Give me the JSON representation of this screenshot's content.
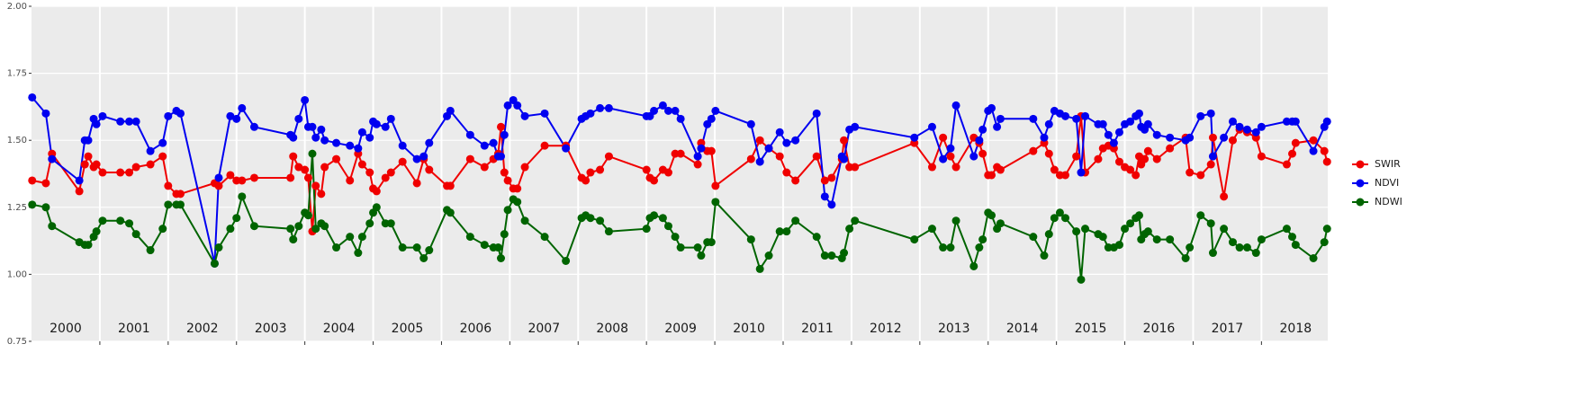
{
  "chart_data": {
    "type": "line",
    "x": [
      2000.01,
      2000.21,
      2000.3,
      2000.7,
      2000.78,
      2000.83,
      2000.91,
      2000.95,
      2001.04,
      2001.3,
      2001.43,
      2001.53,
      2001.74,
      2001.92,
      2002.0,
      2002.12,
      2002.18,
      2002.68,
      2002.74,
      2002.91,
      2003.0,
      2003.08,
      2003.26,
      2003.79,
      2003.83,
      2003.91,
      2004.0,
      2004.05,
      2004.11,
      2004.16,
      2004.24,
      2004.29,
      2004.46,
      2004.66,
      2004.78,
      2004.84,
      2004.95,
      2005.0,
      2005.05,
      2005.18,
      2005.26,
      2005.43,
      2005.64,
      2005.74,
      2005.82,
      2006.08,
      2006.13,
      2006.42,
      2006.63,
      2006.76,
      2006.83,
      2006.87,
      2006.92,
      2006.97,
      2007.05,
      2007.11,
      2007.22,
      2007.51,
      2007.82,
      2008.05,
      2008.11,
      2008.18,
      2008.32,
      2008.45,
      2009.0,
      2009.05,
      2009.11,
      2009.24,
      2009.32,
      2009.42,
      2009.5,
      2009.75,
      2009.8,
      2009.89,
      2009.95,
      2010.01,
      2010.53,
      2010.66,
      2010.79,
      2010.95,
      2011.05,
      2011.18,
      2011.49,
      2011.61,
      2011.71,
      2011.86,
      2011.89,
      2011.97,
      2012.05,
      2012.92,
      2013.18,
      2013.34,
      2013.45,
      2013.53,
      2013.79,
      2013.87,
      2013.92,
      2014.0,
      2014.05,
      2014.13,
      2014.18,
      2014.66,
      2014.82,
      2014.89,
      2014.97,
      2015.05,
      2015.13,
      2015.29,
      2015.36,
      2015.42,
      2015.61,
      2015.68,
      2015.76,
      2015.84,
      2015.92,
      2016.0,
      2016.08,
      2016.16,
      2016.21,
      2016.24,
      2016.29,
      2016.34,
      2016.47,
      2016.66,
      2016.89,
      2016.95,
      2017.11,
      2017.26,
      2017.29,
      2017.45,
      2017.58,
      2017.68,
      2017.79,
      2017.92,
      2018.0,
      2018.37,
      2018.45,
      2018.5,
      2018.76,
      2018.92,
      2018.96
    ],
    "series": [
      {
        "name": "SWIR",
        "color": "#f00000",
        "values": [
          1.35,
          1.34,
          1.45,
          1.31,
          1.41,
          1.44,
          1.4,
          1.41,
          1.38,
          1.38,
          1.38,
          1.4,
          1.41,
          1.44,
          1.33,
          1.3,
          1.3,
          1.34,
          1.33,
          1.37,
          1.35,
          1.35,
          1.36,
          1.36,
          1.44,
          1.4,
          1.39,
          1.36,
          1.16,
          1.33,
          1.3,
          1.4,
          1.43,
          1.35,
          1.45,
          1.41,
          1.38,
          1.32,
          1.31,
          1.36,
          1.38,
          1.42,
          1.34,
          1.43,
          1.39,
          1.33,
          1.33,
          1.43,
          1.4,
          1.43,
          1.45,
          1.55,
          1.38,
          1.35,
          1.32,
          1.32,
          1.4,
          1.48,
          1.48,
          1.36,
          1.35,
          1.38,
          1.39,
          1.44,
          1.39,
          1.36,
          1.35,
          1.39,
          1.38,
          1.45,
          1.45,
          1.41,
          1.49,
          1.46,
          1.46,
          1.33,
          1.43,
          1.5,
          1.47,
          1.44,
          1.38,
          1.35,
          1.44,
          1.35,
          1.36,
          1.43,
          1.5,
          1.4,
          1.4,
          1.49,
          1.4,
          1.51,
          1.44,
          1.4,
          1.51,
          1.49,
          1.45,
          1.37,
          1.37,
          1.4,
          1.39,
          1.46,
          1.49,
          1.45,
          1.39,
          1.37,
          1.37,
          1.44,
          1.59,
          1.38,
          1.43,
          1.47,
          1.48,
          1.47,
          1.42,
          1.4,
          1.39,
          1.37,
          1.44,
          1.41,
          1.43,
          1.46,
          1.43,
          1.47,
          1.51,
          1.38,
          1.37,
          1.41,
          1.51,
          1.29,
          1.5,
          1.54,
          1.53,
          1.51,
          1.44,
          1.41,
          1.45,
          1.49,
          1.5,
          1.46,
          1.42
        ]
      },
      {
        "name": "NDVI",
        "color": "#0000f0",
        "values": [
          1.66,
          1.6,
          1.43,
          1.35,
          1.5,
          1.5,
          1.58,
          1.56,
          1.59,
          1.57,
          1.57,
          1.57,
          1.46,
          1.49,
          1.59,
          1.61,
          1.6,
          1.04,
          1.36,
          1.59,
          1.58,
          1.62,
          1.55,
          1.52,
          1.51,
          1.58,
          1.65,
          1.55,
          1.55,
          1.51,
          1.54,
          1.5,
          1.49,
          1.48,
          1.47,
          1.53,
          1.51,
          1.57,
          1.56,
          1.55,
          1.58,
          1.48,
          1.43,
          1.44,
          1.49,
          1.59,
          1.61,
          1.52,
          1.48,
          1.49,
          1.44,
          1.44,
          1.52,
          1.63,
          1.65,
          1.63,
          1.59,
          1.6,
          1.47,
          1.58,
          1.59,
          1.6,
          1.62,
          1.62,
          1.59,
          1.59,
          1.61,
          1.63,
          1.61,
          1.61,
          1.58,
          1.44,
          1.47,
          1.56,
          1.58,
          1.61,
          1.56,
          1.42,
          1.47,
          1.53,
          1.49,
          1.5,
          1.6,
          1.29,
          1.26,
          1.44,
          1.43,
          1.54,
          1.55,
          1.51,
          1.55,
          1.43,
          1.47,
          1.63,
          1.44,
          1.5,
          1.54,
          1.61,
          1.62,
          1.55,
          1.58,
          1.58,
          1.51,
          1.56,
          1.61,
          1.6,
          1.59,
          1.58,
          1.38,
          1.59,
          1.56,
          1.56,
          1.52,
          1.49,
          1.53,
          1.56,
          1.57,
          1.59,
          1.6,
          1.55,
          1.54,
          1.56,
          1.52,
          1.51,
          1.5,
          1.51,
          1.59,
          1.6,
          1.44,
          1.51,
          1.57,
          1.55,
          1.54,
          1.53,
          1.55,
          1.57,
          1.57,
          1.57,
          1.46,
          1.55,
          1.57
        ]
      },
      {
        "name": "NDWI",
        "color": "#006400",
        "values": [
          1.26,
          1.25,
          1.18,
          1.12,
          1.11,
          1.11,
          1.14,
          1.16,
          1.2,
          1.2,
          1.19,
          1.15,
          1.09,
          1.17,
          1.26,
          1.26,
          1.26,
          1.04,
          1.1,
          1.17,
          1.21,
          1.29,
          1.18,
          1.17,
          1.13,
          1.18,
          1.23,
          1.22,
          1.45,
          1.17,
          1.19,
          1.18,
          1.1,
          1.14,
          1.08,
          1.14,
          1.19,
          1.23,
          1.25,
          1.19,
          1.19,
          1.1,
          1.1,
          1.06,
          1.09,
          1.24,
          1.23,
          1.14,
          1.11,
          1.1,
          1.1,
          1.06,
          1.15,
          1.24,
          1.28,
          1.27,
          1.2,
          1.14,
          1.05,
          1.21,
          1.22,
          1.21,
          1.2,
          1.16,
          1.17,
          1.21,
          1.22,
          1.21,
          1.18,
          1.14,
          1.1,
          1.1,
          1.07,
          1.12,
          1.12,
          1.27,
          1.13,
          1.02,
          1.07,
          1.16,
          1.16,
          1.2,
          1.14,
          1.07,
          1.07,
          1.06,
          1.08,
          1.17,
          1.2,
          1.13,
          1.17,
          1.1,
          1.1,
          1.2,
          1.03,
          1.1,
          1.13,
          1.23,
          1.22,
          1.17,
          1.19,
          1.14,
          1.07,
          1.15,
          1.21,
          1.23,
          1.21,
          1.16,
          0.98,
          1.17,
          1.15,
          1.14,
          1.1,
          1.1,
          1.11,
          1.17,
          1.19,
          1.21,
          1.22,
          1.13,
          1.15,
          1.16,
          1.13,
          1.13,
          1.06,
          1.1,
          1.22,
          1.19,
          1.08,
          1.17,
          1.12,
          1.1,
          1.1,
          1.08,
          1.13,
          1.17,
          1.14,
          1.11,
          1.06,
          1.12,
          1.17
        ]
      }
    ],
    "xlim": [
      2000,
      2018.97
    ],
    "ylim": [
      0.75,
      2.0
    ],
    "yticks": [
      {
        "value": 0.75,
        "label": "0.75"
      },
      {
        "value": 1,
        "label": "1.00"
      },
      {
        "value": 1.25,
        "label": "1.25"
      },
      {
        "value": 1.5,
        "label": "1.50"
      },
      {
        "value": 1.75,
        "label": "1.75"
      },
      {
        "value": 2,
        "label": "2.00"
      }
    ],
    "xticks": [
      {
        "value": 2000.5,
        "label": "2000"
      },
      {
        "value": 2001.5,
        "label": "2001"
      },
      {
        "value": 2002.5,
        "label": "2002"
      },
      {
        "value": 2003.5,
        "label": "2003"
      },
      {
        "value": 2004.5,
        "label": "2004"
      },
      {
        "value": 2005.5,
        "label": "2005"
      },
      {
        "value": 2006.5,
        "label": "2006"
      },
      {
        "value": 2007.5,
        "label": "2007"
      },
      {
        "value": 2008.5,
        "label": "2008"
      },
      {
        "value": 2009.5,
        "label": "2009"
      },
      {
        "value": 2010.5,
        "label": "2010"
      },
      {
        "value": 2011.5,
        "label": "2011"
      },
      {
        "value": 2012.5,
        "label": "2012"
      },
      {
        "value": 2013.5,
        "label": "2013"
      },
      {
        "value": 2014.5,
        "label": "2014"
      },
      {
        "value": 2015.5,
        "label": "2015"
      },
      {
        "value": 2016.5,
        "label": "2016"
      },
      {
        "value": 2017.5,
        "label": "2017"
      },
      {
        "value": 2018.5,
        "label": "2018"
      }
    ],
    "xgrid": [
      2001,
      2002,
      2003,
      2004,
      2005,
      2006,
      2007,
      2008,
      2009,
      2010,
      2011,
      2012,
      2013,
      2014,
      2015,
      2016,
      2017,
      2018
    ],
    "grid": true
  }
}
